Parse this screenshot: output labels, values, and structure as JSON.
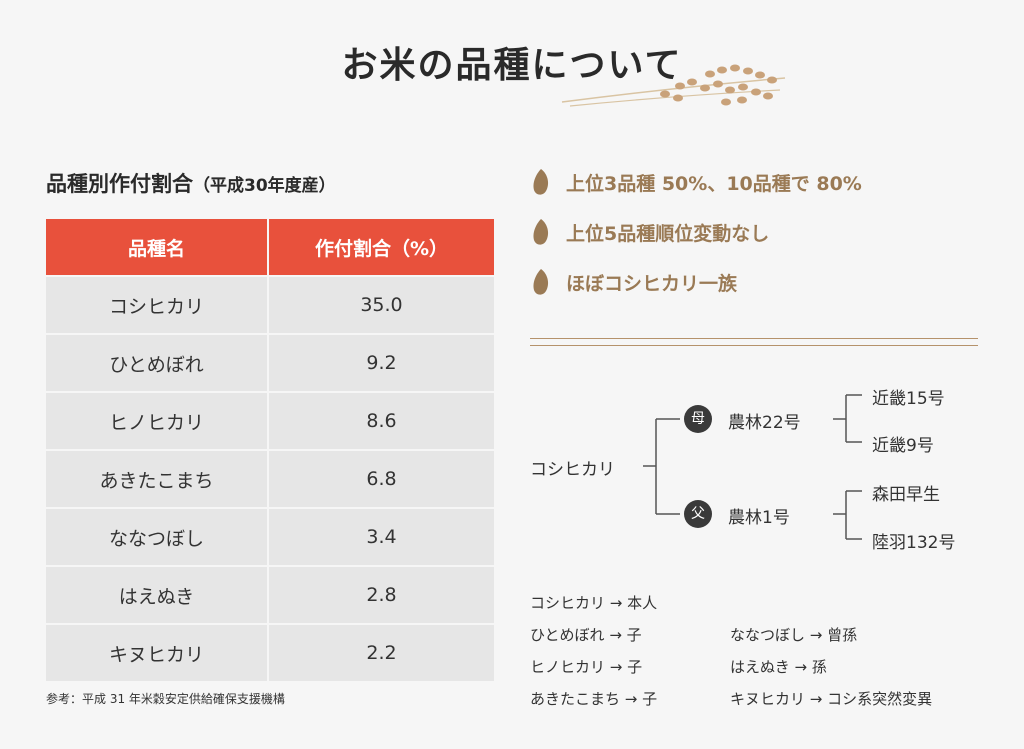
{
  "title": "お米の品種について",
  "table_section": {
    "title": "品種別作付割合",
    "subtitle": "（平成30年度産）",
    "headers": [
      "品種名",
      "作付割合（%）"
    ],
    "rows": [
      {
        "name": "コシヒカリ",
        "value": "35.0"
      },
      {
        "name": "ひとめぼれ",
        "value": "9.2"
      },
      {
        "name": "ヒノヒカリ",
        "value": "8.6"
      },
      {
        "name": "あきたこまち",
        "value": "6.8"
      },
      {
        "name": "ななつぼし",
        "value": "3.4"
      },
      {
        "name": "はえぬき",
        "value": "2.8"
      },
      {
        "name": "キヌヒカリ",
        "value": "2.2"
      }
    ],
    "reference": "参考：平成 31 年米穀安定供給確保支援機構"
  },
  "points": [
    "上位3品種 50%、10品種で 80%",
    "上位5品種順位変動なし",
    "ほぼコシヒカリ一族"
  ],
  "lineage": {
    "root": "コシヒカリ",
    "mother_badge": "母",
    "mother": "農林22号",
    "mother_parents": [
      "近畿15号",
      "近畿9号"
    ],
    "father_badge": "父",
    "father": "農林1号",
    "father_parents": [
      "森田早生",
      "陸羽132号"
    ]
  },
  "relations_left": [
    "コシヒカリ → 本人",
    "ひとめぼれ → 子",
    "ヒノヒカリ → 子",
    "あきたこまち → 子"
  ],
  "relations_right": [
    "ななつぼし → 曾孫",
    "はえぬき → 孫",
    "キヌヒカリ → コシ系突然変異"
  ],
  "colors": {
    "accent_red": "#e8513c",
    "grain_brown": "#9a7a55",
    "table_cell": "#e6e6e6"
  }
}
